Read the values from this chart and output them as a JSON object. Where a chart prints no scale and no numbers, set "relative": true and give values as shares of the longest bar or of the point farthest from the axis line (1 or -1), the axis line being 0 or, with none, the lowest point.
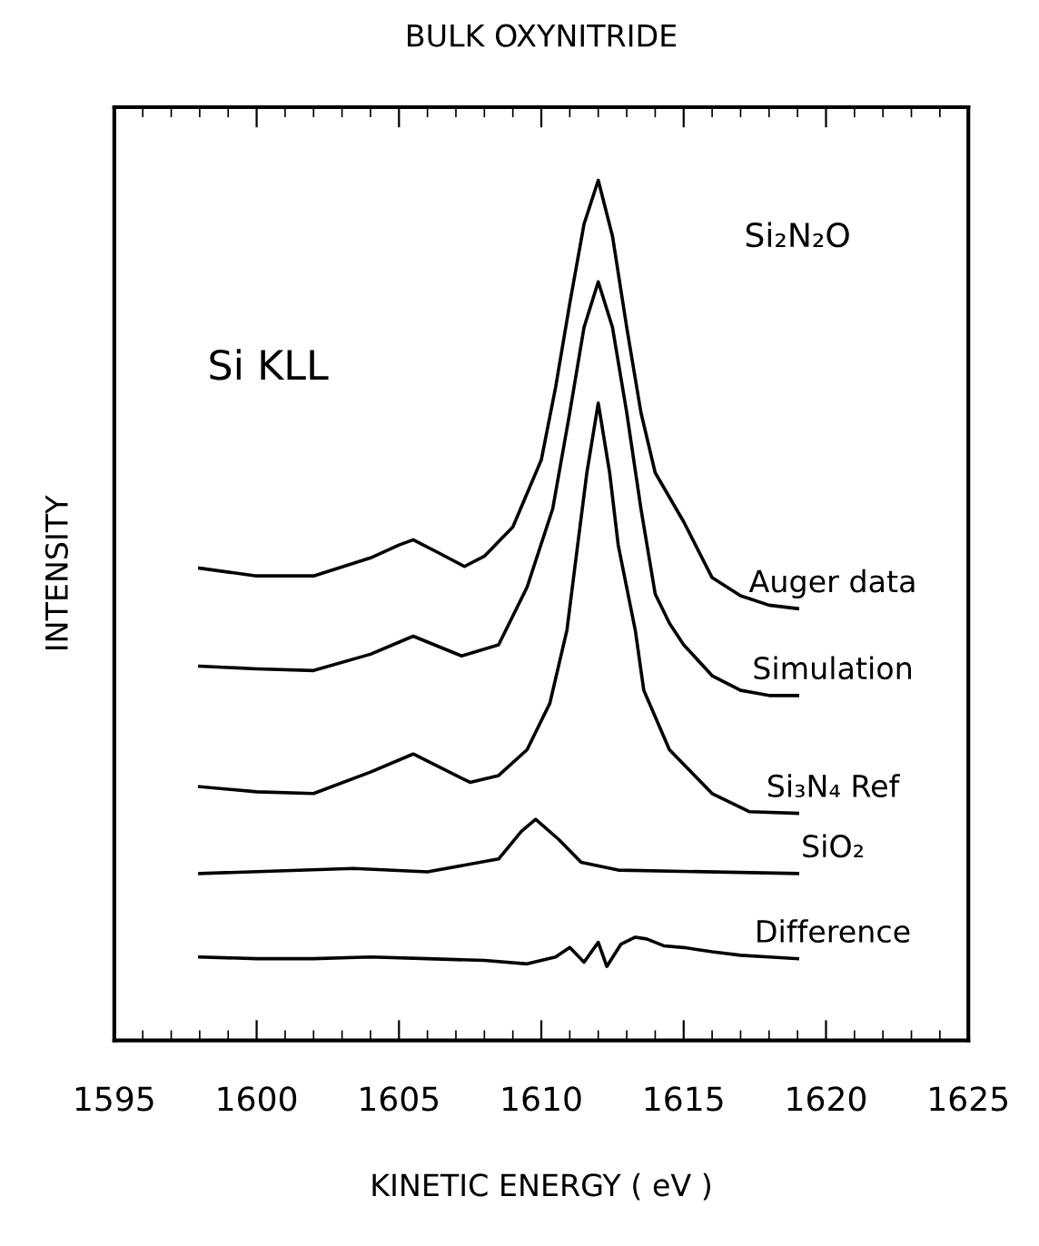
{
  "chart_data": {
    "type": "line",
    "title": "BULK OXYNITRIDE",
    "xlabel": "KINETIC ENERGY ( eV )",
    "ylabel": "INTENSITY",
    "annotations": [
      "Si KLL",
      "Si₂N₂O"
    ],
    "relative": true,
    "xlim": [
      1595,
      1625
    ],
    "xticks": [
      1595,
      1600,
      1605,
      1610,
      1615,
      1620,
      1625
    ],
    "grid": false,
    "legend": false,
    "marker": "none",
    "line_style": "solid",
    "series": [
      {
        "name": "Auger data",
        "color": "#000000",
        "x": [
          1598,
          1600,
          1602,
          1604,
          1605,
          1605.5,
          1606.5,
          1607.3,
          1608,
          1609,
          1610,
          1610.5,
          1611,
          1611.5,
          1612,
          1612.5,
          1613,
          1613.5,
          1614,
          1615,
          1616,
          1617,
          1618,
          1619
        ],
        "values": [
          0.549,
          0.54,
          0.54,
          0.561,
          0.576,
          0.582,
          0.565,
          0.551,
          0.563,
          0.597,
          0.675,
          0.759,
          0.857,
          0.949,
          1.0,
          0.935,
          0.829,
          0.73,
          0.66,
          0.603,
          0.538,
          0.517,
          0.506,
          0.502
        ]
      },
      {
        "name": "Simulation",
        "color": "#000000",
        "x": [
          1598,
          1600,
          1602,
          1604,
          1605.5,
          1607.2,
          1608.5,
          1609.5,
          1610.4,
          1611,
          1611.5,
          1612,
          1612.5,
          1613,
          1613.5,
          1614,
          1614.5,
          1615,
          1616,
          1617,
          1618,
          1619
        ],
        "values": [
          0.435,
          0.432,
          0.43,
          0.449,
          0.47,
          0.447,
          0.46,
          0.527,
          0.618,
          0.73,
          0.829,
          0.882,
          0.829,
          0.73,
          0.618,
          0.519,
          0.485,
          0.46,
          0.424,
          0.407,
          0.401,
          0.401
        ]
      },
      {
        "name": "Si₃N₄ Ref",
        "color": "#000000",
        "x": [
          1598,
          1600,
          1602,
          1604,
          1605.5,
          1607.5,
          1608.5,
          1609.5,
          1610.3,
          1610.9,
          1611.3,
          1611.6,
          1612,
          1612.4,
          1612.7,
          1613.3,
          1613.6,
          1614.5,
          1616,
          1617.3,
          1619
        ],
        "values": [
          0.295,
          0.289,
          0.287,
          0.312,
          0.333,
          0.3,
          0.308,
          0.338,
          0.392,
          0.477,
          0.582,
          0.66,
          0.741,
          0.66,
          0.576,
          0.477,
          0.407,
          0.338,
          0.287,
          0.266,
          0.264
        ]
      },
      {
        "name": "SiO₂",
        "color": "#000000",
        "x": [
          1598,
          1603.4,
          1606,
          1608.5,
          1609.3,
          1609.8,
          1610.6,
          1611.4,
          1612.7,
          1619
        ],
        "values": [
          0.194,
          0.2,
          0.196,
          0.211,
          0.243,
          0.257,
          0.234,
          0.207,
          0.198,
          0.194
        ]
      },
      {
        "name": "Difference",
        "color": "#000000",
        "x": [
          1598,
          1600,
          1602,
          1604,
          1606,
          1608,
          1609.5,
          1610.5,
          1611,
          1611.5,
          1612,
          1612.3,
          1612.8,
          1613.3,
          1613.7,
          1614.3,
          1615,
          1616,
          1617,
          1618,
          1619
        ],
        "values": [
          0.097,
          0.095,
          0.095,
          0.097,
          0.095,
          0.093,
          0.089,
          0.097,
          0.108,
          0.091,
          0.114,
          0.086,
          0.112,
          0.12,
          0.118,
          0.11,
          0.108,
          0.103,
          0.099,
          0.097,
          0.095
        ]
      }
    ]
  }
}
